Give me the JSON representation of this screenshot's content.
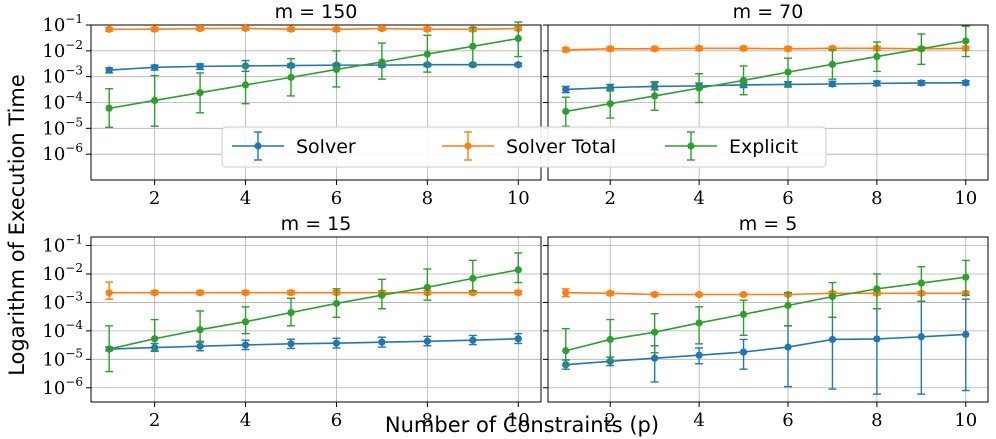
{
  "figure": {
    "xlabel": "Number of Constraints (p)",
    "ylabel": "Logarithm of Execution Time",
    "colors": {
      "Solver": "#1f77b4",
      "Solver Total": "#ff7f0e",
      "Explicit": "#2ca02c"
    },
    "legend": {
      "placement": "center",
      "entries": [
        "Solver",
        "Solver Total",
        "Explicit"
      ]
    }
  },
  "chart_data": [
    {
      "type": "line",
      "title": "m = 150",
      "xlim": [
        0.6,
        10.5
      ],
      "ylim_exp": [
        -7,
        -1
      ],
      "yscale": "log",
      "xticks": [
        2,
        4,
        6,
        8,
        10
      ],
      "yticks_exp": [
        -6,
        -5,
        -4,
        -3,
        -2,
        -1
      ],
      "show_yticklabels": true,
      "show_xticklabels": true,
      "x": [
        1,
        2,
        3,
        4,
        5,
        6,
        7,
        8,
        9,
        10
      ],
      "series": [
        {
          "name": "Solver",
          "values": [
            0.0018,
            0.0023,
            0.0025,
            0.0026,
            0.0027,
            0.0028,
            0.0028,
            0.0029,
            0.0029,
            0.0029
          ],
          "err_low": [
            0.0014,
            0.0018,
            0.0019,
            0.0016,
            0.0023,
            0.0024,
            0.0024,
            0.0025,
            0.0025,
            0.0025
          ],
          "err_high": [
            0.0022,
            0.0028,
            0.0031,
            0.0042,
            0.0031,
            0.0032,
            0.0032,
            0.0033,
            0.0033,
            0.0033
          ]
        },
        {
          "name": "Solver Total",
          "values": [
            0.068,
            0.069,
            0.073,
            0.074,
            0.069,
            0.068,
            0.073,
            0.069,
            0.068,
            0.073
          ],
          "err_low": [
            0.058,
            0.059,
            0.062,
            0.063,
            0.058,
            0.057,
            0.063,
            0.058,
            0.057,
            0.062
          ],
          "err_high": [
            0.08,
            0.081,
            0.086,
            0.087,
            0.081,
            0.08,
            0.086,
            0.081,
            0.08,
            0.086
          ]
        },
        {
          "name": "Explicit",
          "values": [
            6e-05,
            0.00012,
            0.00024,
            0.00048,
            0.00094,
            0.0019,
            0.0037,
            0.0075,
            0.015,
            0.03
          ],
          "err_low": [
            1.1e-05,
            1.2e-05,
            4e-05,
            9e-05,
            0.00018,
            0.0004,
            0.0008,
            0.0015,
            0.003,
            0.006
          ],
          "err_high": [
            0.00034,
            0.0011,
            0.0014,
            0.0026,
            0.005,
            0.01,
            0.02,
            0.04,
            0.08,
            0.13
          ]
        }
      ]
    },
    {
      "type": "line",
      "title": "m = 70",
      "xlim": [
        0.6,
        10.5
      ],
      "ylim_exp": [
        -7,
        -1
      ],
      "yscale": "log",
      "xticks": [
        2,
        4,
        6,
        8,
        10
      ],
      "yticks_exp": [
        -6,
        -5,
        -4,
        -3,
        -2,
        -1
      ],
      "show_yticklabels": false,
      "show_xticklabels": true,
      "x": [
        1,
        2,
        3,
        4,
        5,
        6,
        7,
        8,
        9,
        10
      ],
      "series": [
        {
          "name": "Solver",
          "values": [
            0.00032,
            0.00038,
            0.00042,
            0.00044,
            0.00048,
            0.0005,
            0.00052,
            0.00055,
            0.00057,
            0.00058
          ],
          "err_low": [
            0.00024,
            0.00028,
            0.00031,
            0.00034,
            0.00038,
            0.0004,
            0.00042,
            0.00045,
            0.00047,
            0.00048
          ],
          "err_high": [
            0.00042,
            0.0005,
            0.00058,
            0.00056,
            0.00062,
            0.00064,
            0.00066,
            0.00068,
            0.0007,
            0.0007
          ]
        },
        {
          "name": "Solver Total",
          "values": [
            0.011,
            0.012,
            0.012,
            0.0125,
            0.0125,
            0.012,
            0.0125,
            0.0125,
            0.012,
            0.0125
          ],
          "err_low": [
            0.0092,
            0.01,
            0.01,
            0.0105,
            0.0105,
            0.01,
            0.0105,
            0.0105,
            0.01,
            0.0105
          ],
          "err_high": [
            0.013,
            0.0142,
            0.0142,
            0.0148,
            0.0148,
            0.0142,
            0.0148,
            0.0148,
            0.0142,
            0.0148
          ]
        },
        {
          "name": "Explicit",
          "values": [
            4.5e-05,
            9e-05,
            0.00018,
            0.00036,
            0.00072,
            0.0015,
            0.003,
            0.006,
            0.012,
            0.024
          ],
          "err_low": [
            1.2e-05,
            2.5e-05,
            5e-05,
            0.0001,
            0.0002,
            0.0004,
            0.0008,
            0.0016,
            0.003,
            0.006
          ],
          "err_high": [
            0.00016,
            0.00032,
            0.00064,
            0.0013,
            0.0026,
            0.0052,
            0.011,
            0.022,
            0.045,
            0.09
          ]
        }
      ]
    },
    {
      "type": "line",
      "title": "m = 15",
      "xlim": [
        0.6,
        10.5
      ],
      "ylim_exp": [
        -6.5,
        -0.7
      ],
      "yscale": "log",
      "xticks": [
        2,
        4,
        6,
        8,
        10
      ],
      "yticks_exp": [
        -6,
        -5,
        -4,
        -3,
        -2,
        -1
      ],
      "show_yticklabels": true,
      "show_xticklabels": true,
      "x": [
        1,
        2,
        3,
        4,
        5,
        6,
        7,
        8,
        9,
        10
      ],
      "series": [
        {
          "name": "Solver",
          "values": [
            2.3e-05,
            2.6e-05,
            2.9e-05,
            3.2e-05,
            3.5e-05,
            3.7e-05,
            4e-05,
            4.3e-05,
            4.7e-05,
            5.3e-05
          ],
          "err_low": [
            2e-05,
            1.9e-05,
            2e-05,
            2.2e-05,
            2.4e-05,
            2.5e-05,
            2.7e-05,
            3e-05,
            3.3e-05,
            3.6e-05
          ],
          "err_high": [
            2.7e-05,
            3.6e-05,
            4.3e-05,
            4.7e-05,
            5.1e-05,
            5.5e-05,
            6e-05,
            6.4e-05,
            6.9e-05,
            8e-05
          ]
        },
        {
          "name": "Solver Total",
          "values": [
            0.0022,
            0.0022,
            0.0022,
            0.0022,
            0.0022,
            0.0022,
            0.0022,
            0.0022,
            0.0022,
            0.0022
          ],
          "err_low": [
            0.0013,
            0.0019,
            0.0019,
            0.0019,
            0.0019,
            0.0019,
            0.0019,
            0.0019,
            0.0019,
            0.0019
          ],
          "err_high": [
            0.0052,
            0.0026,
            0.0026,
            0.0026,
            0.0026,
            0.0026,
            0.0026,
            0.0026,
            0.0026,
            0.0026
          ]
        },
        {
          "name": "Explicit",
          "values": [
            2.3e-05,
            5.3e-05,
            0.00011,
            0.00021,
            0.00044,
            0.00092,
            0.0018,
            0.0034,
            0.007,
            0.014
          ],
          "err_low": [
            3.7e-06,
            2e-05,
            4e-05,
            8e-05,
            0.00015,
            0.0003,
            0.0006,
            0.0012,
            0.0025,
            0.005
          ],
          "err_high": [
            0.00015,
            0.00025,
            0.0005,
            0.0007,
            0.0014,
            0.003,
            0.0065,
            0.015,
            0.03,
            0.055
          ]
        }
      ]
    },
    {
      "type": "line",
      "title": "m = 5",
      "xlim": [
        0.6,
        10.5
      ],
      "ylim_exp": [
        -6.5,
        -0.7
      ],
      "yscale": "log",
      "xticks": [
        2,
        4,
        6,
        8,
        10
      ],
      "yticks_exp": [
        -6,
        -5,
        -4,
        -3,
        -2,
        -1
      ],
      "show_yticklabels": false,
      "show_xticklabels": true,
      "x": [
        1,
        2,
        3,
        4,
        5,
        6,
        7,
        8,
        9,
        10
      ],
      "series": [
        {
          "name": "Solver",
          "values": [
            6.5e-06,
            8.5e-06,
            1.1e-05,
            1.4e-05,
            1.8e-05,
            2.7e-05,
            5e-05,
            5.2e-05,
            6.2e-05,
            7.5e-05
          ],
          "err_low": [
            4.5e-06,
            6e-06,
            1.6e-06,
            7e-06,
            4.5e-06,
            1.1e-06,
            9e-07,
            6e-07,
            6e-07,
            8e-07
          ],
          "err_high": [
            9.5e-06,
            1.2e-05,
            3e-05,
            2.5e-05,
            5e-05,
            0.00015,
            0.0003,
            0.0006,
            0.0011,
            0.0013
          ]
        },
        {
          "name": "Solver Total",
          "values": [
            0.0022,
            0.0021,
            0.0019,
            0.0019,
            0.0019,
            0.0019,
            0.0021,
            0.0021,
            0.0021,
            0.0021
          ],
          "err_low": [
            0.0016,
            0.0018,
            0.0017,
            0.0017,
            0.0017,
            0.0017,
            0.0018,
            0.0018,
            0.0018,
            0.0018
          ],
          "err_high": [
            0.003,
            0.0024,
            0.0022,
            0.0021,
            0.0021,
            0.0021,
            0.0024,
            0.0024,
            0.0024,
            0.0024
          ]
        },
        {
          "name": "Explicit",
          "values": [
            2e-05,
            5e-05,
            9e-05,
            0.00019,
            0.00038,
            0.00078,
            0.0016,
            0.003,
            0.0048,
            0.0077
          ],
          "err_low": [
            6e-06,
            9e-06,
            1.7e-05,
            3.5e-05,
            7e-05,
            0.00015,
            0.0003,
            0.0006,
            0.0011,
            0.0018
          ],
          "err_high": [
            0.00012,
            0.00025,
            0.0004,
            0.0007,
            0.0012,
            0.0022,
            0.005,
            0.01,
            0.018,
            0.03
          ]
        }
      ]
    }
  ]
}
